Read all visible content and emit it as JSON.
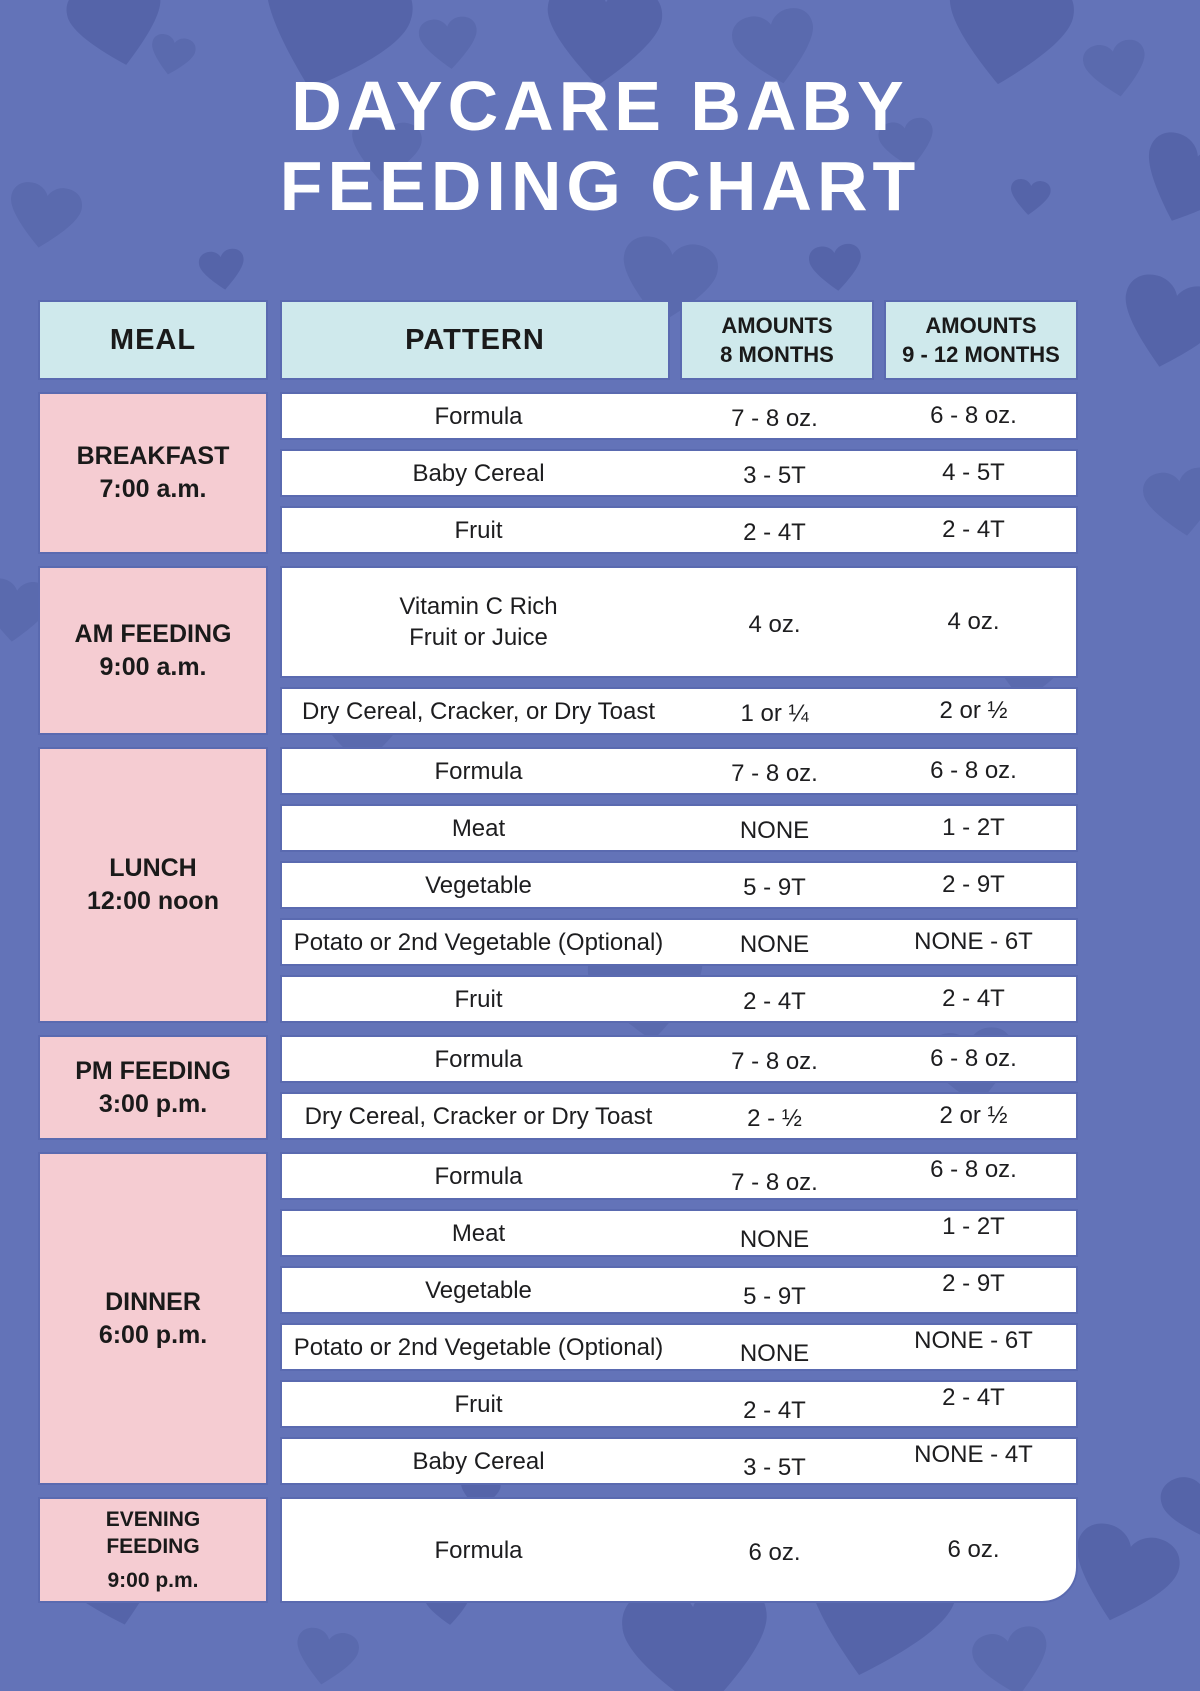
{
  "title": {
    "line1": "DAYCARE BABY",
    "line2": "FEEDING CHART"
  },
  "table": {
    "headers": {
      "meal": "MEAL",
      "pattern": "PATTERN",
      "amounts8_line1": "AMOUNTS",
      "amounts8_line2": "8 MONTHS",
      "amounts912_line1": "AMOUNTS",
      "amounts912_line2": "9 - 12 MONTHS"
    },
    "groups": [
      {
        "meal": "BREAKFAST",
        "time": "7:00 a.m.",
        "rows": [
          {
            "pattern": "Formula",
            "amount_8_months": "7 - 8 oz.",
            "amount_9_12_months": "6 - 8 oz."
          },
          {
            "pattern": "Baby Cereal",
            "amount_8_months": "3 - 5T",
            "amount_9_12_months": "4 - 5T"
          },
          {
            "pattern": "Fruit",
            "amount_8_months": "2 - 4T",
            "amount_9_12_months": "2 - 4T"
          }
        ]
      },
      {
        "meal": "AM FEEDING",
        "time": "9:00 a.m.",
        "rows": [
          {
            "pattern": "Vitamin C Rich\nFruit or Juice",
            "amount_8_months": "4 oz.",
            "amount_9_12_months": "4 oz."
          },
          {
            "pattern": "Dry Cereal, Cracker, or Dry Toast",
            "amount_8_months": "1 or ¼",
            "amount_9_12_months": "2 or ½"
          }
        ]
      },
      {
        "meal": "LUNCH",
        "time": "12:00 noon",
        "rows": [
          {
            "pattern": "Formula",
            "amount_8_months": "7 - 8 oz.",
            "amount_9_12_months": "6 - 8 oz."
          },
          {
            "pattern": "Meat",
            "amount_8_months": "NONE",
            "amount_9_12_months": "1 - 2T"
          },
          {
            "pattern": "Vegetable",
            "amount_8_months": "5 - 9T",
            "amount_9_12_months": "2 - 9T"
          },
          {
            "pattern": "Potato or 2nd Vegetable (Optional)",
            "amount_8_months": "NONE",
            "amount_9_12_months": "NONE - 6T"
          },
          {
            "pattern": "Fruit",
            "amount_8_months": "2 - 4T",
            "amount_9_12_months": "2 - 4T"
          }
        ]
      },
      {
        "meal": "PM FEEDING",
        "time": "3:00 p.m.",
        "rows": [
          {
            "pattern": "Formula",
            "amount_8_months": "7 - 8 oz.",
            "amount_9_12_months": "6 - 8 oz."
          },
          {
            "pattern": "Dry Cereal, Cracker or Dry Toast",
            "amount_8_months": "2 - ½",
            "amount_9_12_months": "2 or ½"
          }
        ]
      },
      {
        "meal": "DINNER",
        "time": "6:00 p.m.",
        "rows": [
          {
            "pattern": "Formula",
            "amount_8_months": "7 - 8 oz.",
            "amount_9_12_months": "6 - 8 oz."
          },
          {
            "pattern": "Meat",
            "amount_8_months": "NONE",
            "amount_9_12_months": "1 - 2T"
          },
          {
            "pattern": "Vegetable",
            "amount_8_months": "5 - 9T",
            "amount_9_12_months": "2 - 9T"
          },
          {
            "pattern": "Potato or 2nd Vegetable (Optional)",
            "amount_8_months": "NONE",
            "amount_9_12_months": "NONE - 6T"
          },
          {
            "pattern": "Fruit",
            "amount_8_months": "2 - 4T",
            "amount_9_12_months": "2 - 4T"
          },
          {
            "pattern": "Baby Cereal",
            "amount_8_months": "3 - 5T",
            "amount_9_12_months": "NONE - 4T"
          }
        ]
      },
      {
        "meal": "EVENING\nFEEDING",
        "time": "9:00 p.m.",
        "rows": [
          {
            "pattern": "Formula",
            "amount_8_months": "6 oz.",
            "amount_9_12_months": "6 oz."
          }
        ]
      }
    ]
  },
  "colors": {
    "background": "#6373b8",
    "heart": "#5767ad",
    "header_cell": "#cfe9ec",
    "meal_cell": "#f5ccd2",
    "row_cell": "#ffffff",
    "cell_border": "#5a6ab0",
    "text": "#1a1a1a",
    "title_text": "#ffffff"
  }
}
